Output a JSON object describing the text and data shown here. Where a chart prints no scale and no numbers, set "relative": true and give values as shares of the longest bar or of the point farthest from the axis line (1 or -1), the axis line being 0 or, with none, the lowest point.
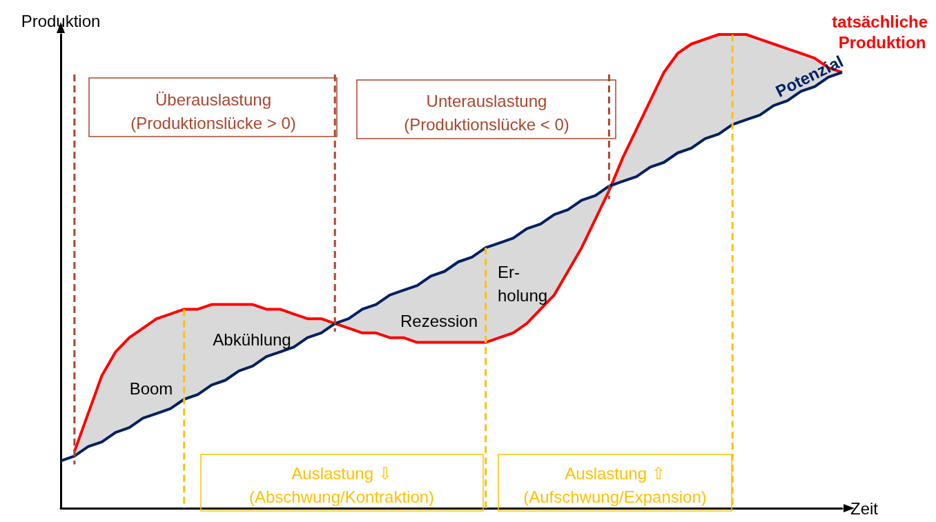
{
  "chart_data": {
    "type": "line",
    "relative": true,
    "xlabel": "Zeit",
    "ylabel": "Produktion",
    "categories": [
      null,
      null,
      null,
      null,
      null,
      null,
      null,
      null,
      null,
      null,
      null,
      null,
      null,
      null,
      null,
      null,
      null,
      null,
      null,
      null,
      null,
      null,
      null,
      null,
      null,
      null,
      null,
      null,
      null,
      null,
      null,
      null,
      null,
      null,
      null,
      null,
      null,
      null,
      null,
      null,
      null,
      null,
      null,
      null,
      null,
      null,
      null,
      null,
      null,
      null,
      null,
      null,
      null,
      null,
      null,
      null,
      null,
      null
    ],
    "series": [
      {
        "name": "tatsächliche Produktion",
        "color": "#ff0000",
        "values": [
          null,
          0.12,
          0.2,
          0.28,
          0.33,
          0.36,
          0.38,
          0.4,
          0.41,
          0.42,
          0.42,
          0.43,
          0.43,
          0.43,
          0.43,
          0.42,
          0.42,
          0.41,
          0.4,
          0.4,
          0.39,
          0.38,
          0.37,
          0.37,
          0.36,
          0.36,
          0.35,
          0.35,
          0.35,
          0.35,
          0.35,
          0.35,
          0.36,
          0.37,
          0.39,
          0.42,
          0.45,
          0.5,
          0.55,
          0.61,
          0.67,
          0.74,
          0.8,
          0.86,
          0.92,
          0.96,
          0.98,
          0.99,
          1.0,
          1.0,
          1.0,
          0.99,
          0.98,
          0.97,
          0.96,
          0.95,
          0.93,
          0.92
        ],
        "lower": [
          null,
          0.11,
          0.13,
          0.14,
          0.16,
          0.17,
          0.19,
          0.2,
          0.21,
          0.23,
          0.24,
          0.26,
          0.27,
          0.29,
          0.3,
          0.32,
          0.33,
          0.34,
          0.36,
          0.37,
          0.39,
          0.38,
          0.37,
          0.37,
          0.36,
          0.36,
          0.35,
          0.35,
          0.35,
          0.35,
          0.35,
          0.35,
          0.36,
          0.37,
          0.39,
          0.42,
          0.45,
          0.5,
          0.55,
          0.61,
          0.67,
          0.69,
          0.7,
          0.72,
          0.73,
          0.75,
          0.76,
          0.78,
          0.79,
          0.81,
          0.82,
          0.83,
          0.85,
          0.86,
          0.88,
          0.89,
          0.91,
          0.92
        ],
        "upper": [
          null,
          0.12,
          0.2,
          0.28,
          0.33,
          0.36,
          0.38,
          0.4,
          0.41,
          0.42,
          0.42,
          0.43,
          0.43,
          0.43,
          0.43,
          0.42,
          0.42,
          0.41,
          0.4,
          0.4,
          0.39,
          0.4,
          0.42,
          0.43,
          0.45,
          0.46,
          0.47,
          0.49,
          0.5,
          0.52,
          0.53,
          0.55,
          0.56,
          0.57,
          0.59,
          0.6,
          0.62,
          0.63,
          0.65,
          0.66,
          0.68,
          0.74,
          0.8,
          0.86,
          0.92,
          0.96,
          0.98,
          0.99,
          1.0,
          1.0,
          1.0,
          0.99,
          0.98,
          0.97,
          0.96,
          0.95,
          0.93,
          0.92
        ]
      },
      {
        "name": "Potenzial",
        "color": "#002060",
        "values": [
          0.1,
          0.11,
          0.13,
          0.14,
          0.16,
          0.17,
          0.19,
          0.2,
          0.21,
          0.23,
          0.24,
          0.26,
          0.27,
          0.29,
          0.3,
          0.32,
          0.33,
          0.34,
          0.36,
          0.37,
          0.39,
          0.4,
          0.42,
          0.43,
          0.45,
          0.46,
          0.47,
          0.49,
          0.5,
          0.52,
          0.53,
          0.55,
          0.56,
          0.57,
          0.59,
          0.6,
          0.62,
          0.63,
          0.65,
          0.66,
          0.68,
          0.69,
          0.7,
          0.72,
          0.73,
          0.75,
          0.76,
          0.78,
          0.79,
          0.81,
          0.82,
          0.83,
          0.85,
          0.86,
          0.88,
          0.89,
          0.91,
          0.92
        ]
      }
    ],
    "annotations": [
      "Überauslastung\n(Produktionslücke > 0)",
      "Unterauslastung\n(Produktionslücke < 0)",
      "Auslastung ⇩\n(Abschwung/Kontraktion)",
      "Auslastung ⇧\n(Aufschwung/Expansion)",
      "Boom",
      "Abkühlung",
      "Rezession",
      "Er-\nholung"
    ]
  }
}
